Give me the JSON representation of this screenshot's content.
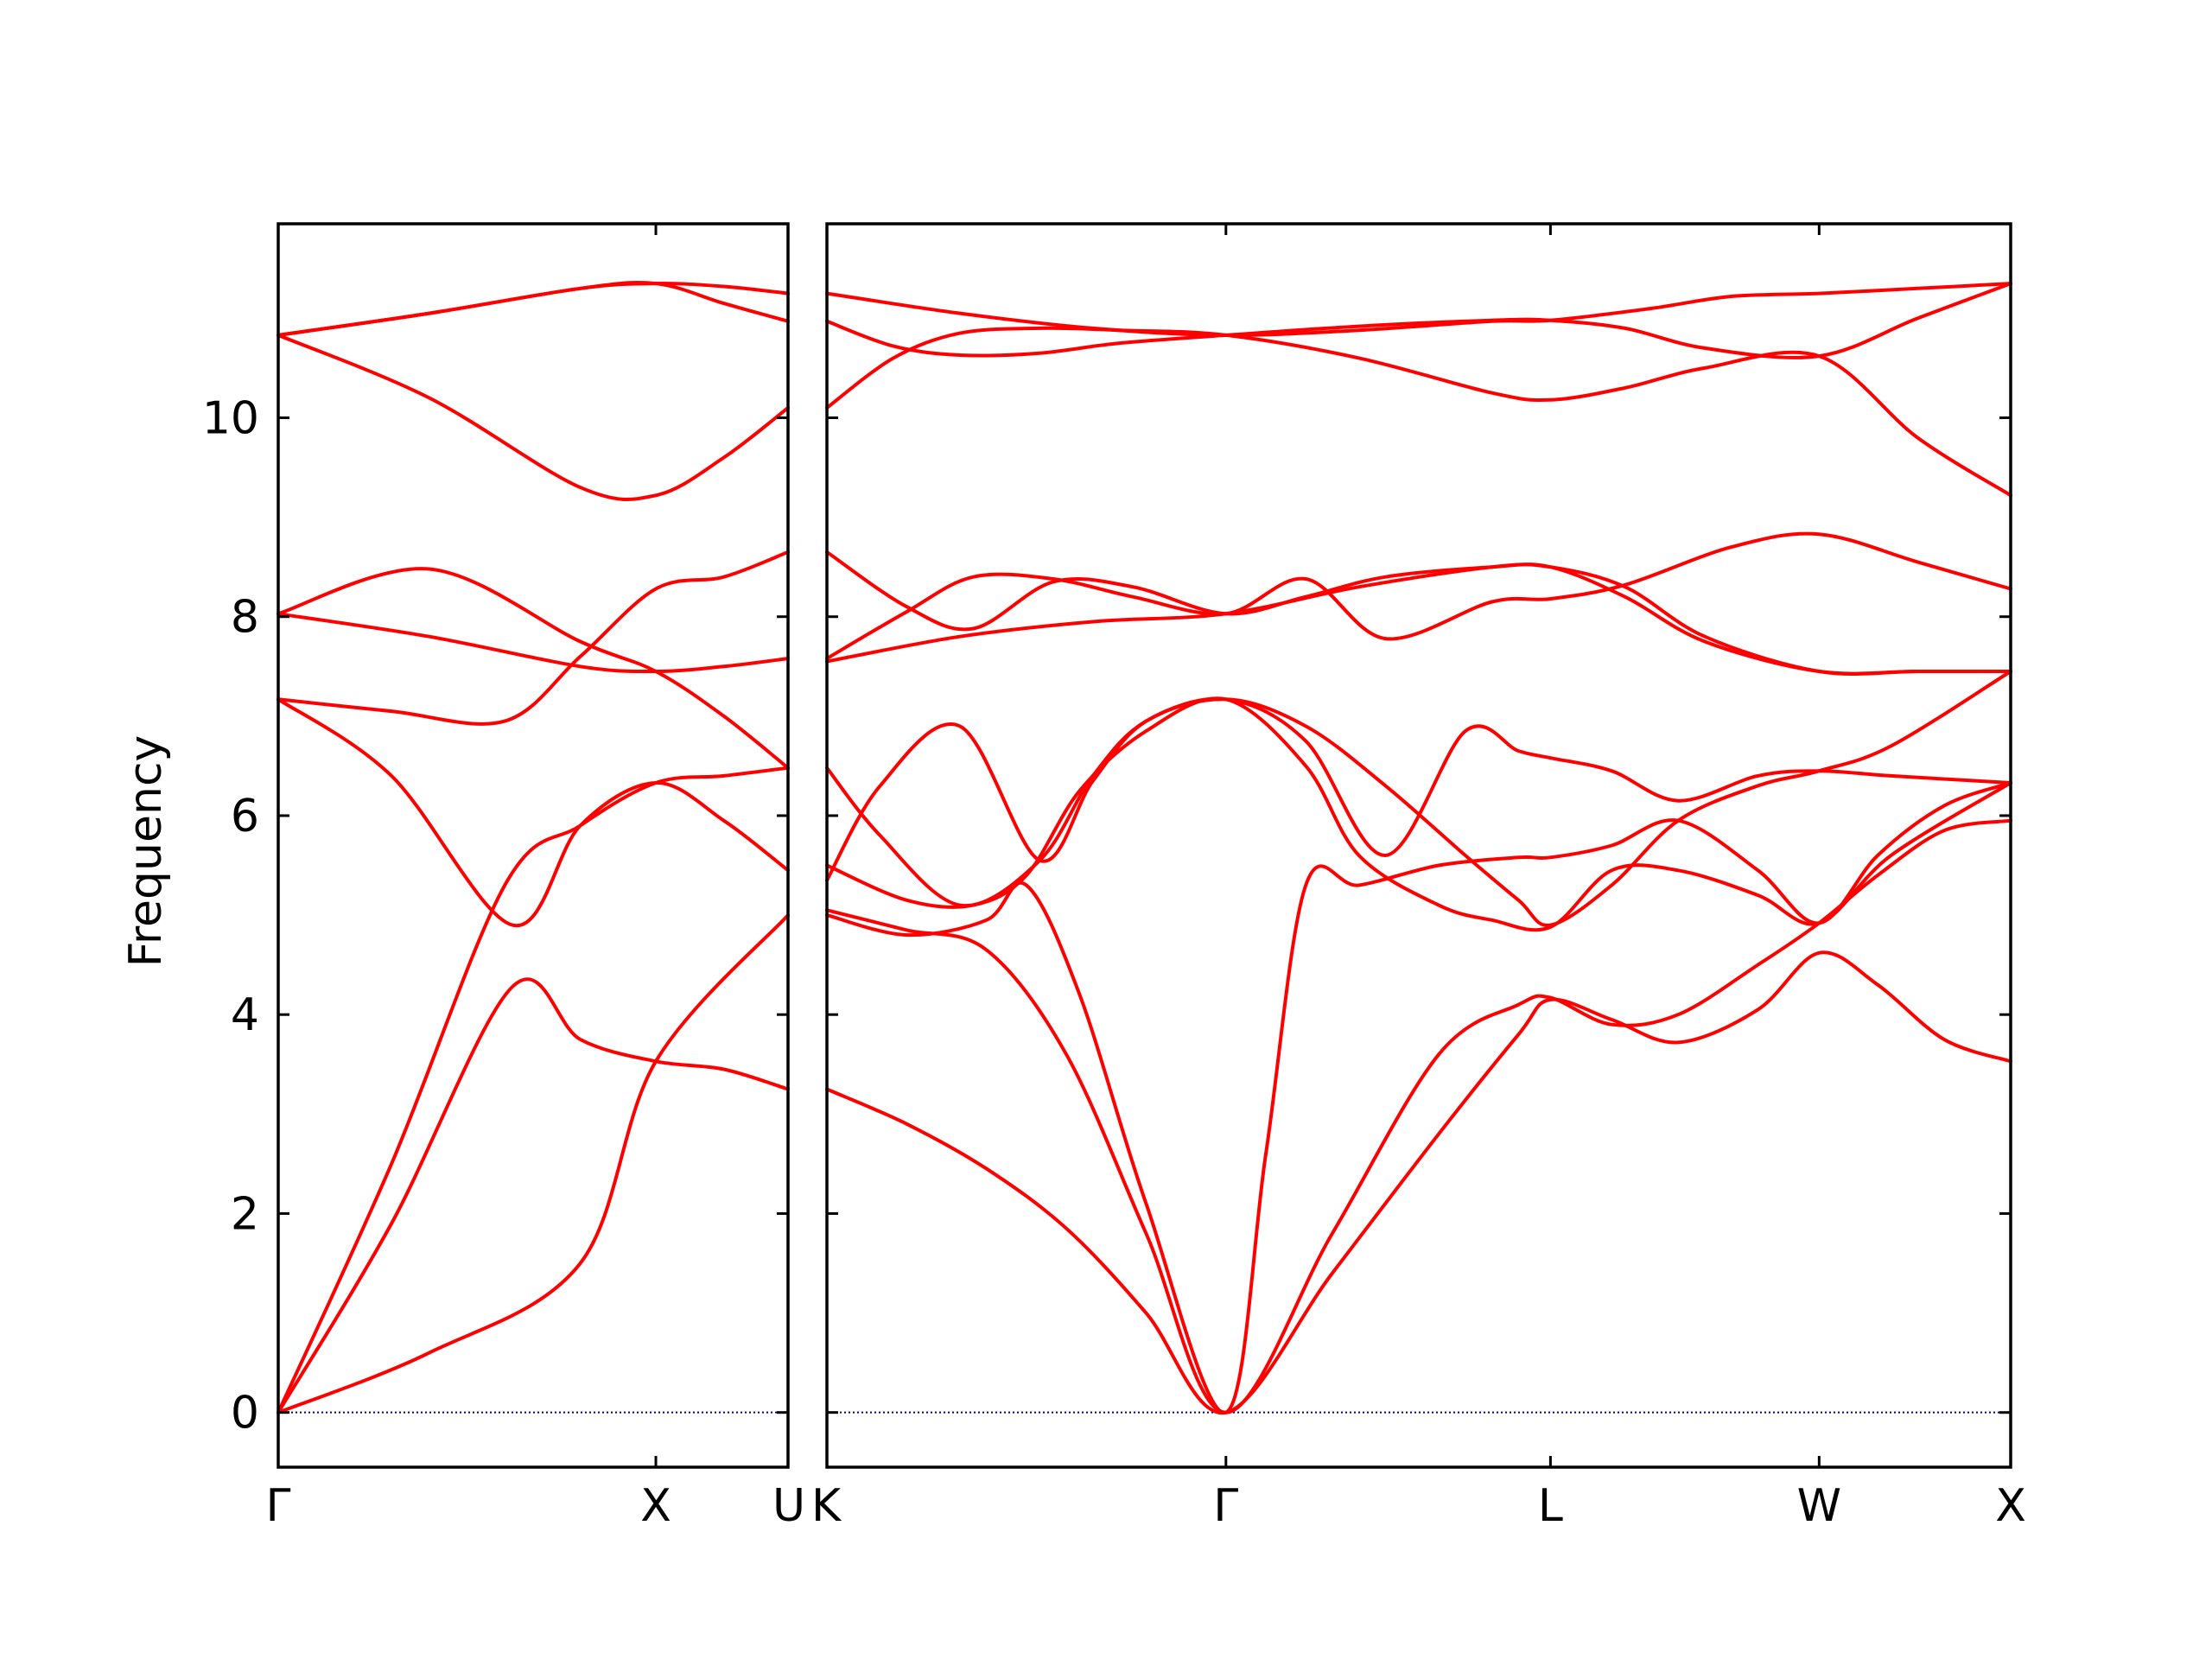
{
  "chart_data": {
    "type": "line",
    "ylabel": "Frequency",
    "ylim": [
      -0.55,
      11.95
    ],
    "yticks": [
      0,
      2,
      4,
      6,
      8,
      10
    ],
    "ytick_labels": [
      "0",
      "2",
      "4",
      "6",
      "8",
      "10"
    ],
    "zero_line_color": "#00008b",
    "band_color": "#ff0000",
    "panels": [
      {
        "xlim": [
          0,
          1.35
        ],
        "xticks": [
          {
            "x": 0,
            "label": "Γ"
          },
          {
            "x": 1.0,
            "label": "X"
          },
          {
            "x": 1.35,
            "label": "U"
          }
        ],
        "series": [
          {
            "x": [
              0,
              0.3,
              0.62,
              0.8,
              1.0,
              1.18,
              1.35
            ],
            "values": [
              0,
              1.9,
              4.28,
              3.75,
              3.53,
              3.45,
              3.25
            ]
          },
          {
            "x": [
              0,
              0.3,
              0.6,
              0.8,
              1.0,
              1.18,
              1.35
            ],
            "values": [
              0,
              2.5,
              5.3,
              5.9,
              6.33,
              6.4,
              6.48
            ]
          },
          {
            "x": [
              0,
              0.3,
              0.62,
              0.8,
              1.0,
              1.18,
              1.35
            ],
            "values": [
              7.17,
              6.4,
              4.9,
              5.9,
              6.33,
              5.95,
              5.45
            ]
          },
          {
            "x": [
              0,
              0.3,
              0.6,
              0.8,
              1.0,
              1.18,
              1.35
            ],
            "values": [
              7.17,
              7.05,
              6.95,
              7.6,
              8.28,
              8.4,
              8.65
            ]
          },
          {
            "x": [
              0,
              0.4,
              0.8,
              1.0,
              1.18,
              1.35
            ],
            "values": [
              8.03,
              7.8,
              7.5,
              7.45,
              7.5,
              7.58
            ]
          },
          {
            "x": [
              0,
              0.4,
              0.8,
              1.0,
              1.18,
              1.35
            ],
            "values": [
              8.03,
              8.48,
              7.75,
              7.45,
              7.0,
              6.48
            ]
          },
          {
            "x": [
              0,
              0.4,
              0.8,
              1.0,
              1.18,
              1.35
            ],
            "values": [
              10.83,
              10.2,
              9.3,
              9.22,
              9.6,
              10.1
            ]
          },
          {
            "x": [
              0,
              0.4,
              0.8,
              1.0,
              1.18,
              1.35
            ],
            "values": [
              10.83,
              11.05,
              11.3,
              11.35,
              11.15,
              10.97
            ]
          },
          {
            "x": [
              0,
              0.4,
              0.8,
              1.0,
              1.18,
              1.35
            ],
            "values": [
              10.83,
              11.05,
              11.3,
              11.35,
              11.32,
              11.25
            ]
          },
          {
            "x": [
              0,
              0.4,
              0.8,
              1.0,
              1.35
            ],
            "values": [
              0,
              0.6,
              1.5,
              3.53,
              5.0
            ]
          }
        ]
      },
      {
        "xlim": [
          0,
          4.45
        ],
        "xticks": [
          {
            "x": 0,
            "label": "K"
          },
          {
            "x": 1.5,
            "label": "Γ"
          },
          {
            "x": 2.72,
            "label": "L"
          },
          {
            "x": 3.73,
            "label": "W"
          },
          {
            "x": 4.45,
            "label": "X"
          }
        ],
        "series": [
          {
            "x": [
              0,
              0.3,
              0.6,
              0.9,
              1.2,
              1.5,
              1.9,
              2.3,
              2.6,
              2.72,
              2.95,
              3.2,
              3.5,
              3.73,
              3.95,
              4.2,
              4.45
            ],
            "values": [
              3.25,
              2.9,
              2.45,
              1.85,
              1.0,
              0,
              1.4,
              2.8,
              3.8,
              4.15,
              3.95,
              3.72,
              4.05,
              4.62,
              4.3,
              3.75,
              3.53
            ]
          },
          {
            "x": [
              0,
              0.3,
              0.6,
              0.9,
              1.2,
              1.5,
              1.9,
              2.3,
              2.6,
              2.72,
              2.95,
              3.2,
              3.5,
              3.73,
              3.95,
              4.2,
              4.45
            ],
            "values": [
              5.05,
              4.85,
              4.65,
              3.6,
              1.8,
              0,
              1.8,
              3.6,
              4.1,
              4.17,
              3.9,
              4.0,
              4.5,
              4.92,
              5.4,
              5.85,
              5.95
            ]
          },
          {
            "x": [
              0,
              0.3,
              0.6,
              0.75,
              0.95,
              1.2,
              1.5,
              1.65,
              1.8,
              2.0,
              2.3,
              2.6,
              2.72,
              2.95,
              3.2,
              3.5,
              3.73,
              3.95,
              4.2,
              4.45
            ],
            "values": [
              5.0,
              4.8,
              4.95,
              5.3,
              4.2,
              2.1,
              0,
              2.6,
              5.3,
              5.3,
              5.5,
              5.58,
              5.58,
              5.7,
              5.95,
              5.45,
              4.92,
              5.6,
              6.1,
              6.33
            ]
          },
          {
            "x": [
              0,
              0.3,
              0.55,
              0.75,
              0.95,
              1.2,
              1.5,
              1.8,
              2.0,
              2.3,
              2.5,
              2.72,
              2.95,
              3.2,
              3.5,
              3.73,
              4.0,
              4.45
            ],
            "values": [
              5.5,
              5.15,
              5.1,
              5.4,
              6.25,
              6.85,
              7.17,
              6.5,
              5.6,
              5.1,
              4.95,
              4.88,
              5.45,
              5.45,
              5.2,
              4.92,
              5.6,
              6.33
            ]
          },
          {
            "x": [
              0,
              0.2,
              0.5,
              0.8,
              1.0,
              1.2,
              1.5,
              1.8,
              2.1,
              2.4,
              2.6,
              2.72,
              2.95,
              3.2,
              3.5,
              3.73,
              4.0,
              4.45
            ],
            "values": [
              6.48,
              5.8,
              5.1,
              5.55,
              6.4,
              6.95,
              7.17,
              6.75,
              5.6,
              6.85,
              6.65,
              6.58,
              6.45,
              6.15,
              6.4,
              6.45,
              6.4,
              6.33
            ]
          },
          {
            "x": [
              0,
              0.2,
              0.5,
              0.8,
              1.0,
              1.2,
              1.5,
              1.8,
              2.1,
              2.4,
              2.6,
              2.72,
              2.95,
              3.2,
              3.5,
              3.73,
              4.0,
              4.45
            ],
            "values": [
              5.35,
              6.3,
              6.9,
              5.55,
              6.35,
              6.95,
              7.17,
              6.9,
              6.3,
              5.6,
              5.15,
              4.9,
              5.3,
              5.95,
              6.3,
              6.45,
              6.7,
              7.45
            ]
          },
          {
            "x": [
              0,
              0.5,
              1.0,
              1.5,
              2.0,
              2.5,
              2.72,
              3.0,
              3.3,
              3.73,
              4.1,
              4.45
            ],
            "values": [
              7.55,
              7.8,
              7.95,
              8.03,
              8.3,
              8.5,
              8.5,
              8.3,
              7.8,
              7.45,
              7.45,
              7.45
            ]
          },
          {
            "x": [
              0,
              0.3,
              0.55,
              0.85,
              1.15,
              1.5,
              1.8,
              2.1,
              2.5,
              2.72,
              3.0,
              3.4,
              3.73,
              4.1,
              4.45
            ],
            "values": [
              7.58,
              8.05,
              8.4,
              8.38,
              8.2,
              8.03,
              8.38,
              7.78,
              8.15,
              8.18,
              8.32,
              8.7,
              8.83,
              8.55,
              8.28
            ]
          },
          {
            "x": [
              0,
              0.3,
              0.55,
              0.85,
              1.15,
              1.5,
              1.8,
              2.1,
              2.5,
              2.72,
              3.0,
              3.3,
              3.73,
              4.1,
              4.45
            ],
            "values": [
              8.65,
              8.1,
              7.88,
              8.35,
              8.3,
              8.03,
              8.2,
              8.4,
              8.5,
              8.5,
              8.2,
              7.75,
              7.45,
              7.45,
              7.45
            ]
          },
          {
            "x": [
              0,
              0.25,
              0.5,
              0.8,
              1.1,
              1.5,
              2.0,
              2.5,
              2.72,
              3.0,
              3.3,
              3.73,
              4.1,
              4.45
            ],
            "values": [
              10.1,
              10.6,
              10.85,
              10.9,
              10.88,
              10.83,
              10.6,
              10.25,
              10.18,
              10.3,
              10.5,
              10.62,
              9.8,
              9.22
            ]
          },
          {
            "x": [
              0,
              0.25,
              0.5,
              0.8,
              1.1,
              1.5,
              2.0,
              2.5,
              2.72,
              3.0,
              3.3,
              3.73,
              4.1,
              4.45
            ],
            "values": [
              10.97,
              10.72,
              10.63,
              10.65,
              10.75,
              10.83,
              10.92,
              10.98,
              10.98,
              10.9,
              10.7,
              10.62,
              11.0,
              11.35
            ]
          },
          {
            "x": [
              0,
              0.5,
              1.0,
              1.5,
              2.0,
              2.5,
              2.72,
              3.1,
              3.4,
              3.73,
              4.1,
              4.45
            ],
            "values": [
              11.25,
              11.05,
              10.9,
              10.83,
              10.88,
              10.97,
              10.98,
              11.1,
              11.22,
              11.25,
              11.3,
              11.35
            ]
          }
        ]
      }
    ]
  }
}
